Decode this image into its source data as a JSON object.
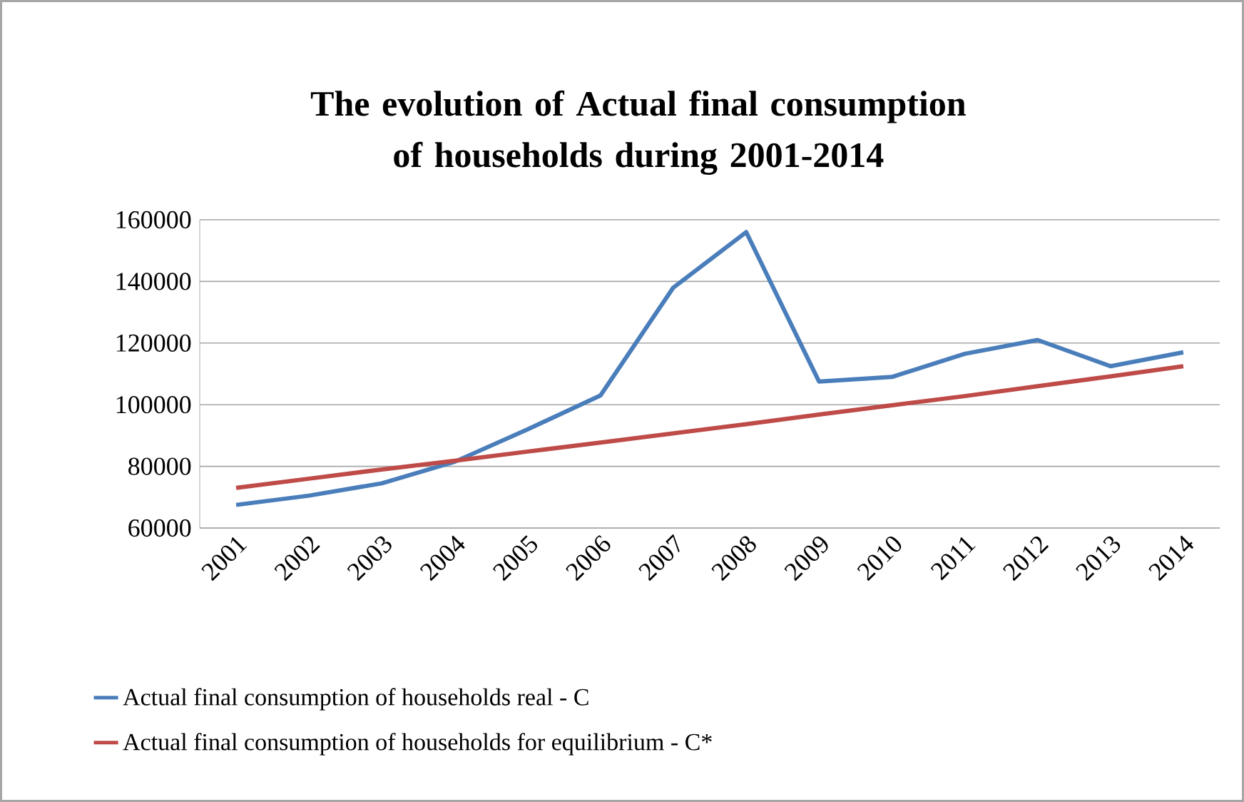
{
  "chart_data": {
    "type": "line",
    "title": "The evolution of Actual final consumption of households during 2001-2014",
    "categories": [
      "2001",
      "2002",
      "2003",
      "2004",
      "2005",
      "2006",
      "2007",
      "2008",
      "2009",
      "2010",
      "2011",
      "2012",
      "2013",
      "2014"
    ],
    "series": [
      {
        "name": "Actual final consumption of households real - C",
        "color": "#4a7ebb",
        "values": [
          67500,
          70500,
          74500,
          81500,
          92000,
          103000,
          138000,
          156000,
          107500,
          109000,
          116500,
          121000,
          112500,
          117000
        ]
      },
      {
        "name": "Actual final consumption of households for equilibrium - C*",
        "color": "#be4b48",
        "values": [
          73000,
          76000,
          79000,
          81800,
          84800,
          87700,
          90700,
          93700,
          96800,
          99800,
          102800,
          106000,
          109200,
          112500
        ]
      }
    ],
    "ylim": [
      60000,
      160000
    ],
    "yticks": [
      60000,
      80000,
      100000,
      120000,
      140000,
      160000
    ],
    "grid": "y",
    "legend": "bottom",
    "marker": "none",
    "line_style": "solid"
  }
}
